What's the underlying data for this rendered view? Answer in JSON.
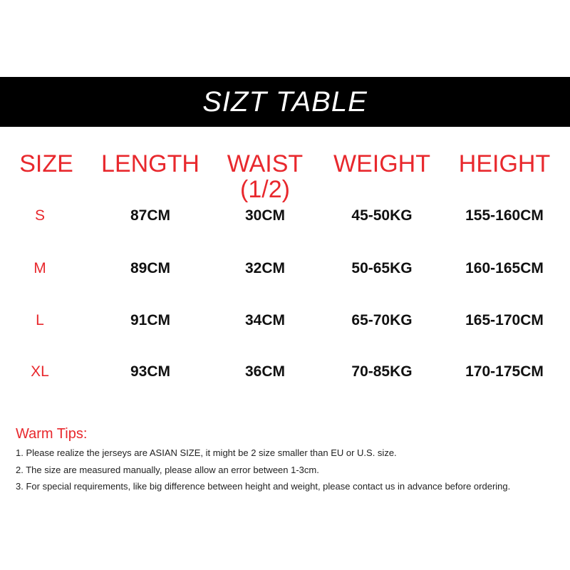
{
  "header": {
    "title": "SIZT TABLE"
  },
  "table": {
    "columns": [
      "SIZE",
      "LENGTH",
      "WAIST (1/2)",
      "WEIGHT",
      "HEIGHT"
    ],
    "rows": [
      [
        "S",
        "87CM",
        "30CM",
        "45-50KG",
        "155-160CM"
      ],
      [
        "M",
        "89CM",
        "32CM",
        "50-65KG",
        "160-165CM"
      ],
      [
        "L",
        "91CM",
        "34CM",
        "65-70KG",
        "165-170CM"
      ],
      [
        "XL",
        "93CM",
        "36CM",
        "70-85KG",
        "170-175CM"
      ]
    ]
  },
  "tips": {
    "title": "Warm Tips:",
    "items": [
      "1. Please realize the jerseys are ASIAN SIZE,  it might be 2 size smaller than EU or U.S. size.",
      "2. The size are measured manually, please allow an error between 1-3cm.",
      "3. For special requirements, like big difference between height and weight, please contact us in advance before ordering."
    ]
  }
}
